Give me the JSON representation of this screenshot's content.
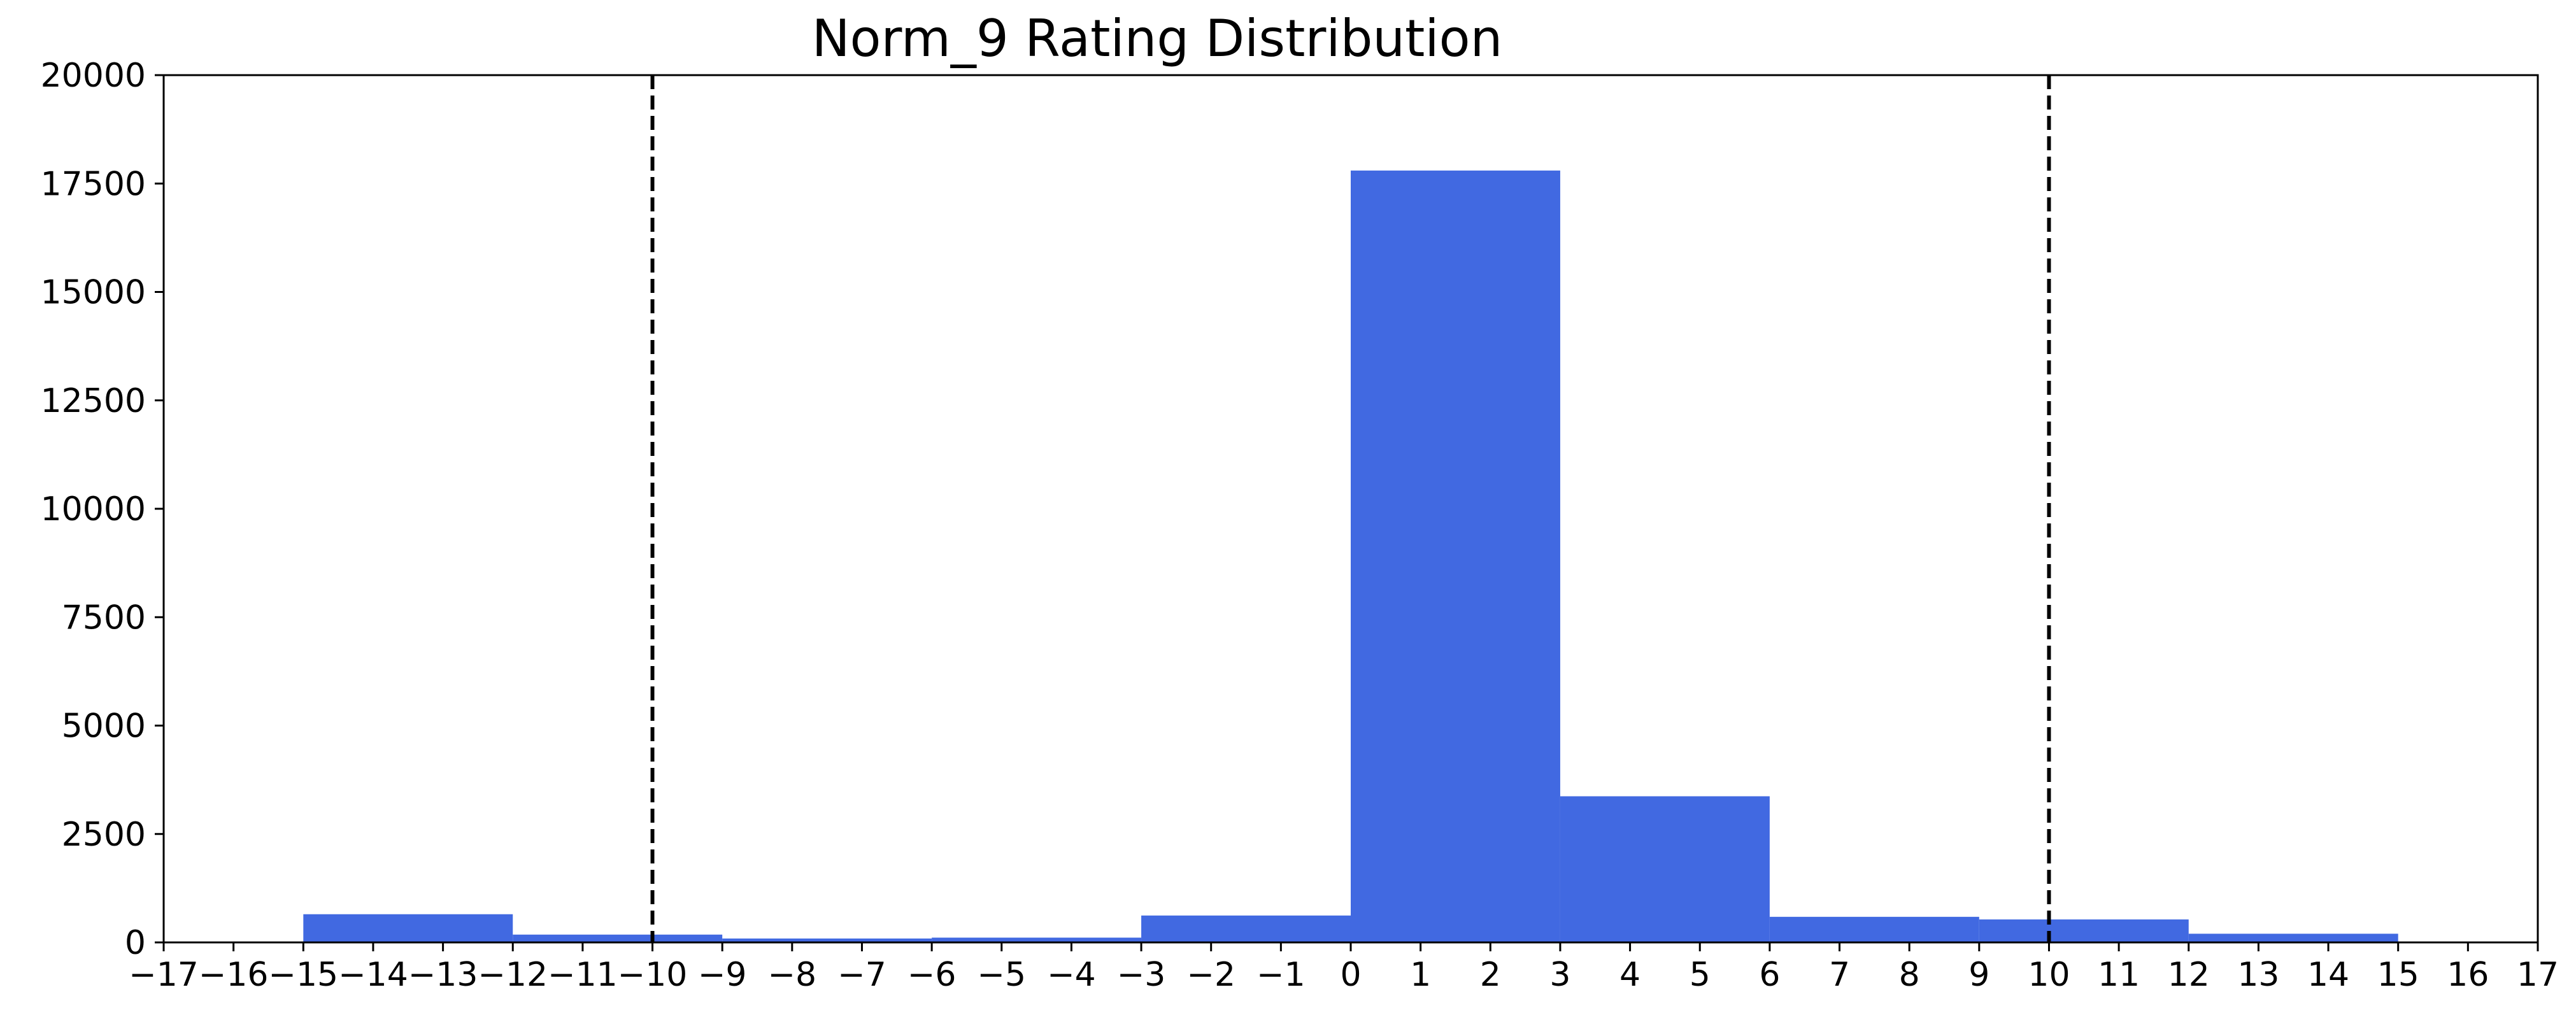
{
  "chart_data": {
    "type": "bar",
    "title": "Norm_9 Rating Distribution",
    "xlabel": "",
    "ylabel": "",
    "xlim": [
      -17,
      17
    ],
    "ylim": [
      0,
      20000
    ],
    "xticks": [
      "−17",
      "−16",
      "−15",
      "−14",
      "−13",
      "−12",
      "−11",
      "−10",
      "−9",
      "−8",
      "−7",
      "−6",
      "−5",
      "−4",
      "−3",
      "−2",
      "−1",
      "0",
      "1",
      "2",
      "3",
      "4",
      "5",
      "6",
      "7",
      "8",
      "9",
      "10",
      "11",
      "12",
      "13",
      "14",
      "15",
      "16",
      "17"
    ],
    "yticks": [
      "0",
      "2500",
      "5000",
      "7500",
      "10000",
      "12500",
      "15000",
      "17500",
      "20000"
    ],
    "bins": [
      {
        "start": -15,
        "end": -12,
        "value": 650
      },
      {
        "start": -12,
        "end": -9,
        "value": 180
      },
      {
        "start": -9,
        "end": -6,
        "value": 90
      },
      {
        "start": -6,
        "end": -3,
        "value": 110
      },
      {
        "start": -3,
        "end": 0,
        "value": 620
      },
      {
        "start": 0,
        "end": 3,
        "value": 17800
      },
      {
        "start": 3,
        "end": 6,
        "value": 3370
      },
      {
        "start": 6,
        "end": 9,
        "value": 590
      },
      {
        "start": 9,
        "end": 12,
        "value": 530
      },
      {
        "start": 12,
        "end": 15,
        "value": 200
      }
    ],
    "bar_color": "#4169E1",
    "reference_lines": [
      -10,
      10
    ],
    "reference_line_color": "#000000",
    "grid": false,
    "legend": "none"
  }
}
